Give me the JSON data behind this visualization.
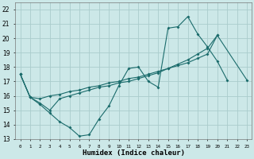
{
  "title": "",
  "xlabel": "Humidex (Indice chaleur)",
  "ylabel": "",
  "background_color": "#cce8e8",
  "grid_color": "#aacccc",
  "line_color": "#1a6b6b",
  "xlim": [
    -0.5,
    23.5
  ],
  "ylim": [
    13,
    22.5
  ],
  "yticks": [
    13,
    14,
    15,
    16,
    17,
    18,
    19,
    20,
    21,
    22
  ],
  "xtick_labels": [
    "0",
    "1",
    "2",
    "3",
    "4",
    "5",
    "6",
    "7",
    "8",
    "9",
    "10",
    "11",
    "12",
    "13",
    "14",
    "15",
    "16",
    "17",
    "18",
    "19",
    "20",
    "21",
    "22",
    "23"
  ],
  "series1": {
    "x": [
      0,
      1,
      2,
      3,
      4,
      5,
      6,
      7,
      8,
      9,
      10,
      11,
      12,
      13,
      14,
      15,
      16,
      17,
      18,
      19,
      20,
      21
    ],
    "y": [
      17.5,
      15.9,
      15.4,
      14.8,
      14.2,
      13.8,
      13.2,
      13.3,
      14.4,
      15.3,
      16.7,
      17.9,
      18.0,
      17.0,
      16.6,
      20.7,
      20.8,
      21.5,
      20.3,
      19.4,
      18.4,
      17.1
    ]
  },
  "series2": {
    "x": [
      0,
      1,
      2,
      3,
      4,
      5,
      6,
      7,
      8,
      9,
      10,
      11,
      12,
      13,
      14,
      15,
      16,
      17,
      18,
      19,
      20
    ],
    "y": [
      17.5,
      15.9,
      15.5,
      15.0,
      15.8,
      16.0,
      16.2,
      16.4,
      16.6,
      16.7,
      16.9,
      17.0,
      17.2,
      17.4,
      17.6,
      17.9,
      18.2,
      18.5,
      18.9,
      19.3,
      20.2
    ]
  },
  "series3": {
    "x": [
      0,
      1,
      2,
      3,
      4,
      5,
      6,
      7,
      8,
      9,
      10,
      11,
      12,
      13,
      14,
      15,
      16,
      17,
      18,
      19,
      20,
      23
    ],
    "y": [
      17.5,
      15.9,
      15.8,
      16.0,
      16.1,
      16.3,
      16.4,
      16.6,
      16.7,
      16.9,
      17.0,
      17.2,
      17.3,
      17.5,
      17.7,
      17.9,
      18.1,
      18.3,
      18.6,
      18.9,
      20.2,
      17.1
    ]
  }
}
